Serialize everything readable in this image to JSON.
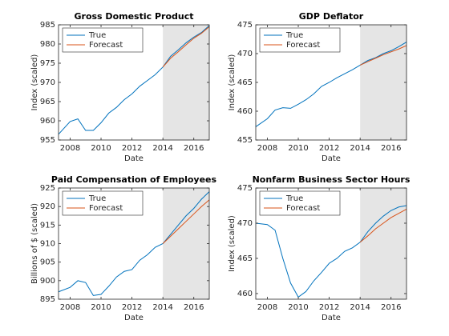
{
  "chart_data": [
    {
      "type": "line",
      "title": "Gross Domestic Product",
      "xlabel": "Date",
      "ylabel": "Index (scaled)",
      "x": [
        2007.25,
        2008,
        2008.5,
        2009,
        2009.5,
        2010,
        2010.5,
        2011,
        2011.5,
        2012,
        2012.5,
        2013,
        2013.5,
        2014,
        2014.5,
        2015,
        2015.5,
        2016,
        2016.5,
        2017
      ],
      "xlim": [
        2007.25,
        2017
      ],
      "xticks": [
        2008,
        2010,
        2012,
        2014,
        2016
      ],
      "ylim": [
        955,
        985
      ],
      "yticks": [
        955,
        960,
        965,
        970,
        975,
        980,
        985
      ],
      "shaded_region": {
        "xlim": [
          2014,
          2017
        ],
        "color": "#e5e5e5"
      },
      "legend": "upper left",
      "series": [
        {
          "name": "True",
          "color": "#0072bd",
          "values": [
            956.5,
            959.8,
            960.5,
            957.5,
            957.5,
            959.5,
            962,
            963.5,
            965.5,
            967,
            969,
            970.5,
            972,
            974,
            976.8,
            978.5,
            980.3,
            981.8,
            983,
            984.8
          ]
        },
        {
          "name": "Forecast",
          "color": "#d95319",
          "values": [
            null,
            null,
            null,
            null,
            null,
            null,
            null,
            null,
            null,
            null,
            null,
            null,
            null,
            974,
            976.3,
            978,
            979.8,
            981.5,
            982.8,
            984.5
          ]
        }
      ]
    },
    {
      "type": "line",
      "title": "GDP Deflator",
      "xlabel": "Date",
      "ylabel": "Index (scaled)",
      "x": [
        2007.25,
        2008,
        2008.5,
        2009,
        2009.5,
        2010,
        2010.5,
        2011,
        2011.5,
        2012,
        2012.5,
        2013,
        2013.5,
        2014,
        2014.5,
        2015,
        2015.5,
        2016,
        2016.5,
        2017
      ],
      "xlim": [
        2007.25,
        2017
      ],
      "xticks": [
        2008,
        2010,
        2012,
        2014,
        2016
      ],
      "ylim": [
        455,
        475
      ],
      "yticks": [
        455,
        460,
        465,
        470,
        475
      ],
      "shaded_region": {
        "xlim": [
          2014,
          2017
        ],
        "color": "#e5e5e5"
      },
      "legend": "upper left",
      "series": [
        {
          "name": "True",
          "color": "#0072bd",
          "values": [
            457.3,
            458.7,
            460.2,
            460.6,
            460.5,
            461.2,
            462,
            463,
            464.3,
            465,
            465.8,
            466.5,
            467.2,
            468,
            468.8,
            469.3,
            470,
            470.5,
            471.2,
            472
          ]
        },
        {
          "name": "Forecast",
          "color": "#d95319",
          "values": [
            null,
            null,
            null,
            null,
            null,
            null,
            null,
            null,
            null,
            null,
            null,
            null,
            null,
            468,
            468.6,
            469.2,
            469.8,
            470.3,
            470.8,
            471.4
          ]
        }
      ]
    },
    {
      "type": "line",
      "title": "Paid Compensation of Employees",
      "xlabel": "Date",
      "ylabel": "Billions of $ (scaled)",
      "x": [
        2007.25,
        2008,
        2008.5,
        2009,
        2009.5,
        2010,
        2010.5,
        2011,
        2011.5,
        2012,
        2012.5,
        2013,
        2013.5,
        2014,
        2014.5,
        2015,
        2015.5,
        2016,
        2016.5,
        2017
      ],
      "xlim": [
        2007.25,
        2017
      ],
      "xticks": [
        2008,
        2010,
        2012,
        2014,
        2016
      ],
      "ylim": [
        895,
        925
      ],
      "yticks": [
        895,
        900,
        905,
        910,
        915,
        920,
        925
      ],
      "shaded_region": {
        "xlim": [
          2014,
          2017
        ],
        "color": "#e5e5e5"
      },
      "legend": "upper left",
      "series": [
        {
          "name": "True",
          "color": "#0072bd",
          "values": [
            897,
            898.2,
            900,
            899.5,
            896,
            896.3,
            898.5,
            901,
            902.5,
            903,
            905.5,
            907,
            909,
            910,
            912.5,
            915,
            917.5,
            919.5,
            922,
            924
          ]
        },
        {
          "name": "Forecast",
          "color": "#d95319",
          "values": [
            null,
            null,
            null,
            null,
            null,
            null,
            null,
            null,
            null,
            null,
            null,
            null,
            null,
            910,
            912,
            914,
            916,
            918,
            920,
            921.8
          ]
        }
      ]
    },
    {
      "type": "line",
      "title": "Nonfarm Business Sector Hours",
      "xlabel": "Date",
      "ylabel": "Index (scaled)",
      "x": [
        2007.25,
        2008,
        2008.5,
        2009,
        2009.5,
        2010,
        2010.5,
        2011,
        2011.5,
        2012,
        2012.5,
        2013,
        2013.5,
        2014,
        2014.5,
        2015,
        2015.5,
        2016,
        2016.5,
        2017
      ],
      "xlim": [
        2007.25,
        2017
      ],
      "xticks": [
        2008,
        2010,
        2012,
        2014,
        2016
      ],
      "ylim": [
        459.2,
        475
      ],
      "yticks": [
        460,
        465,
        470,
        475
      ],
      "shaded_region": {
        "xlim": [
          2014,
          2017
        ],
        "color": "#e5e5e5"
      },
      "legend": "upper left",
      "series": [
        {
          "name": "True",
          "color": "#0072bd",
          "values": [
            470,
            469.8,
            469,
            465,
            461.5,
            459.5,
            460.3,
            461.8,
            463,
            464.3,
            465,
            466,
            466.5,
            467.3,
            468.8,
            470,
            471,
            471.8,
            472.3,
            472.5
          ]
        },
        {
          "name": "Forecast",
          "color": "#d95319",
          "values": [
            null,
            null,
            null,
            null,
            null,
            null,
            null,
            null,
            null,
            null,
            null,
            null,
            null,
            467.3,
            468.2,
            469.2,
            470,
            470.8,
            471.4,
            472
          ]
        }
      ]
    }
  ]
}
